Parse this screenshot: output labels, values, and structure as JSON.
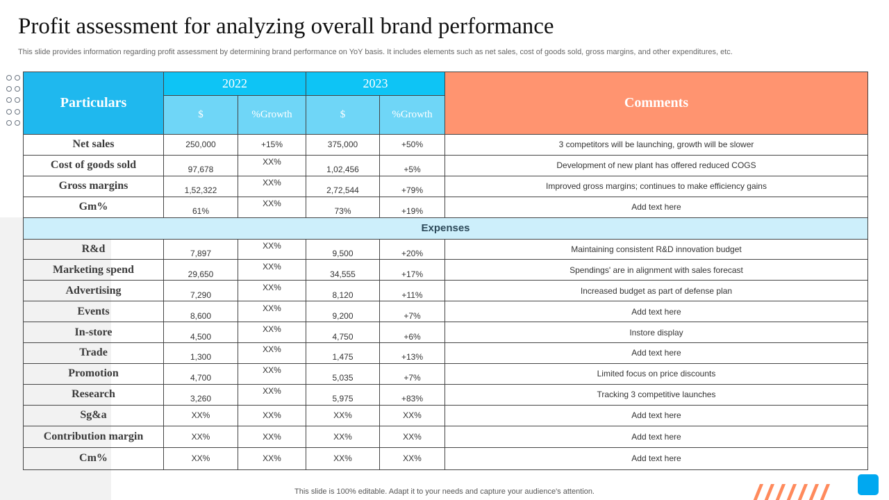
{
  "page": {
    "title": "Profit assessment for analyzing overall brand performance",
    "subtitle": "This slide provides information regarding profit assessment by determining brand performance on YoY basis. It includes elements such as net sales, cost of goods sold, gross margins, and other expenditures, etc.",
    "footer": "This slide is 100% editable. Adapt it to your needs and capture your audience's attention."
  },
  "table": {
    "header": {
      "particulars": "Particulars",
      "year_2022": "2022",
      "year_2023": "2023",
      "dollar_2022": "$",
      "growth_2022": "%Growth",
      "dollar_2023": "$",
      "growth_2023": "%Growth",
      "comments": "Comments"
    },
    "top_rows": [
      {
        "label": "Net sales",
        "v2022": "250,000",
        "g2022": "+15%",
        "v2023": "375,000",
        "g2023": "+50%",
        "comment": "3 competitors will be launching, growth will be slower"
      },
      {
        "label": "Cost of goods sold",
        "v2022": "97,678",
        "g2022": "XX%",
        "v2023": "1,02,456",
        "g2023": "+5%",
        "comment": "Development  of new plant has offered   reduced COGS"
      },
      {
        "label": "Gross margins",
        "v2022": "1,52,322",
        "g2022": "XX%",
        "v2023": "2,72,544",
        "g2023": "+79%",
        "comment": "Improved  gross margins; continues to make efficiency gains"
      },
      {
        "label": "Gm%",
        "v2022": "61%",
        "g2022": "XX%",
        "v2023": "73%",
        "g2023": "+19%",
        "comment": "Add text here"
      }
    ],
    "section_label": "Expenses",
    "expense_rows": [
      {
        "label": "R&d",
        "v2022": "7,897",
        "g2022": "XX%",
        "v2023": "9,500",
        "g2023": "+20%",
        "comment": "Maintaining consistent R&D innovation  budget"
      },
      {
        "label": "Marketing spend",
        "v2022": "29,650",
        "g2022": "XX%",
        "v2023": "34,555",
        "g2023": "+17%",
        "comment": "Spendings' are in alignment with sales forecast"
      },
      {
        "label": "Advertising",
        "v2022": "7,290",
        "g2022": "XX%",
        "v2023": "8,120",
        "g2023": "+11%",
        "comment": "Increased  budget as part of defense plan"
      },
      {
        "label": "Events",
        "v2022": "8,600",
        "g2022": "XX%",
        "v2023": "9,200",
        "g2023": "+7%",
        "comment": "Add text here"
      },
      {
        "label": "In-store",
        "v2022": "4,500",
        "g2022": "XX%",
        "v2023": "4,750",
        "g2023": "+6%",
        "comment": "Instore display"
      },
      {
        "label": "Trade",
        "v2022": "1,300",
        "g2022": "XX%",
        "v2023": "1,475",
        "g2023": "+13%",
        "comment": "Add text here"
      },
      {
        "label": "Promotion",
        "v2022": "4,700",
        "g2022": "XX%",
        "v2023": "5,035",
        "g2023": "+7%",
        "comment": "Limited focus on price discounts"
      },
      {
        "label": "Research",
        "v2022": "3,260",
        "g2022": "XX%",
        "v2023": "5,975",
        "g2023": "+83%",
        "comment": "Tracking 3 competitive launches"
      }
    ],
    "bottom_rows": [
      {
        "label": "Sg&a",
        "v2022": "XX%",
        "g2022": "XX%",
        "v2023": "XX%",
        "g2023": "XX%",
        "comment": "Add text here"
      },
      {
        "label": "Contribution margin",
        "v2022": "XX%",
        "g2022": "XX%",
        "v2023": "XX%",
        "g2023": "XX%",
        "comment": "Add text here"
      },
      {
        "label": "Cm%",
        "v2022": "XX%",
        "g2022": "XX%",
        "v2023": "XX%",
        "g2023": "XX%",
        "comment": "Add text here"
      }
    ]
  },
  "colors": {
    "header_blue": "#1fb8ee",
    "year_blue": "#0ec4f5",
    "sub_blue": "#6fd6f7",
    "comments_orange": "#ff9470",
    "expenses_band": "#cdeffb",
    "accent_square": "#00a8f0",
    "stripe_orange": "#ff8a5c"
  }
}
